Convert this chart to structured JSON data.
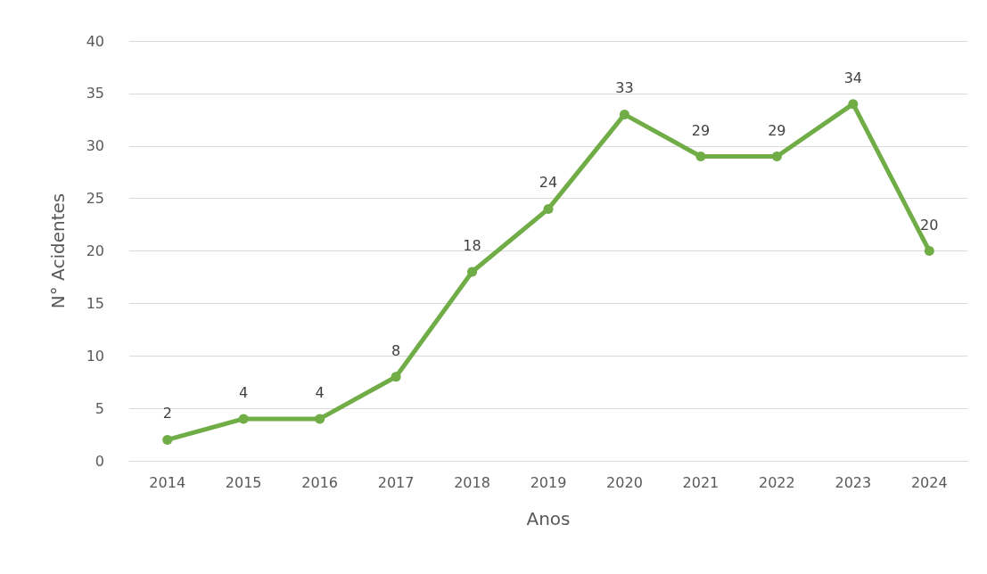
{
  "chart_data": {
    "type": "line",
    "xlabel": "Anos",
    "ylabel": "N° Acidentes",
    "categories": [
      "2014",
      "2015",
      "2016",
      "2017",
      "2018",
      "2019",
      "2020",
      "2021",
      "2022",
      "2023",
      "2024"
    ],
    "series": [
      {
        "color": "#70ad47",
        "values": [
          2,
          4,
          4,
          8,
          18,
          24,
          33,
          29,
          29,
          34,
          20
        ]
      }
    ],
    "ylim": [
      0,
      40
    ],
    "yticks": [
      0,
      5,
      10,
      15,
      20,
      25,
      30,
      35,
      40
    ],
    "grid": "y",
    "data_labels": true,
    "marker": "circle",
    "line_style": "solid"
  }
}
